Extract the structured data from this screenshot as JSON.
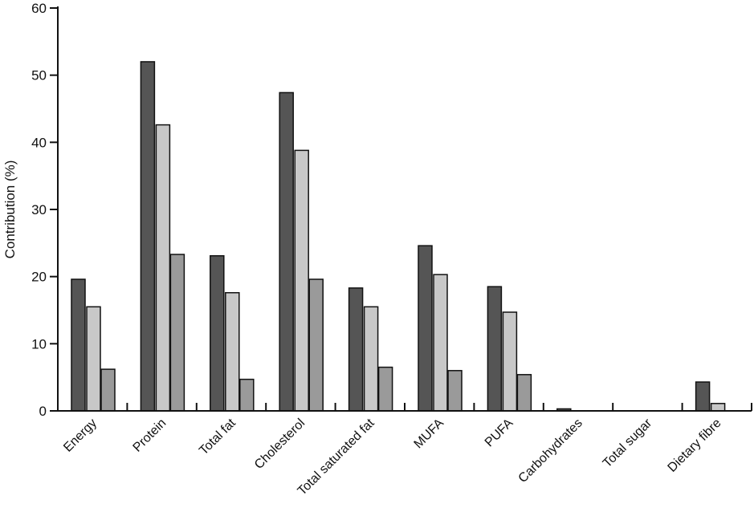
{
  "chart_data": {
    "type": "bar",
    "title": "",
    "xlabel": "",
    "ylabel": "Contribution (%)",
    "ylim": [
      0,
      60
    ],
    "yticks": [
      0,
      10,
      20,
      30,
      40,
      50,
      60
    ],
    "grid": false,
    "categories": [
      "Energy",
      "Protein",
      "Total fat",
      "Cholesterol",
      "Total saturated fat",
      "MUFA",
      "PUFA",
      "Carbohydrates",
      "Total sugar",
      "Dietary fibre"
    ],
    "series": [
      {
        "values": [
          19.6,
          52.0,
          23.1,
          47.4,
          18.3,
          24.6,
          18.5,
          0.3,
          0,
          4.3
        ],
        "color": "#555555"
      },
      {
        "values": [
          15.5,
          42.6,
          17.6,
          38.8,
          15.5,
          20.3,
          14.7,
          0,
          0,
          1.1
        ],
        "color": "#c8c8c8"
      },
      {
        "values": [
          6.2,
          23.3,
          4.7,
          19.6,
          6.5,
          6.0,
          5.4,
          0,
          0,
          0
        ],
        "color": "#9a9a9a"
      }
    ]
  }
}
